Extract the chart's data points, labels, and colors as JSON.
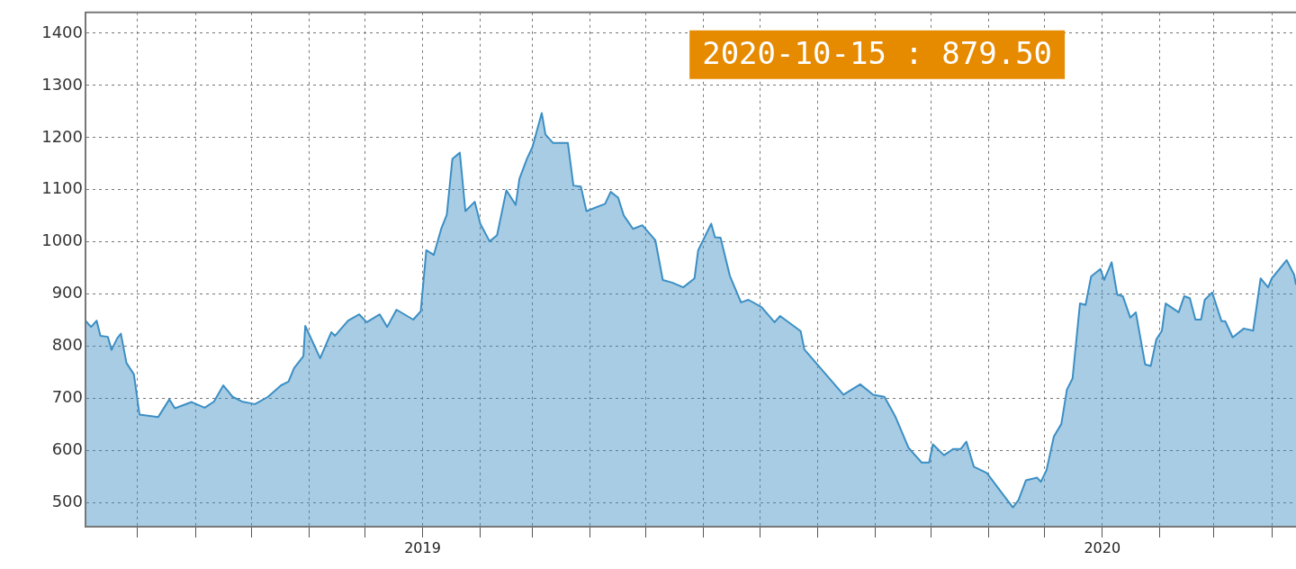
{
  "chart_data": {
    "type": "area",
    "color": "#3c8fc4",
    "x": [
      "2018-07-04",
      "2018-07-07",
      "2018-07-10",
      "2018-07-12",
      "2018-07-16",
      "2018-07-18",
      "2018-07-21",
      "2018-07-23",
      "2018-07-26",
      "2018-07-30",
      "2018-08-02",
      "2018-08-12",
      "2018-08-18",
      "2018-08-21",
      "2018-08-30",
      "2018-09-06",
      "2018-09-11",
      "2018-09-16",
      "2018-09-21",
      "2018-09-26",
      "2018-10-03",
      "2018-10-10",
      "2018-10-17",
      "2018-10-21",
      "2018-10-24",
      "2018-10-29",
      "2018-10-30",
      "2018-11-07",
      "2018-11-13",
      "2018-11-15",
      "2018-11-22",
      "2018-11-28",
      "2018-12-02",
      "2018-12-09",
      "2018-12-13",
      "2018-12-18",
      "2018-12-27",
      "2018-12-31",
      "2019-01-03",
      "2019-01-07",
      "2019-01-11",
      "2019-01-14",
      "2019-01-17",
      "2019-01-21",
      "2019-01-24",
      "2019-01-29",
      "2019-02-01",
      "2019-02-06",
      "2019-02-10",
      "2019-02-15",
      "2019-02-20",
      "2019-02-22",
      "2019-02-26",
      "2019-03-01",
      "2019-03-06",
      "2019-03-08",
      "2019-03-12",
      "2019-03-20",
      "2019-03-23",
      "2019-03-27",
      "2019-03-30",
      "2019-04-09",
      "2019-04-12",
      "2019-04-16",
      "2019-04-19",
      "2019-04-24",
      "2019-04-29",
      "2019-05-06",
      "2019-05-10",
      "2019-05-15",
      "2019-05-21",
      "2019-05-27",
      "2019-05-29",
      "2019-06-05",
      "2019-06-07",
      "2019-06-10",
      "2019-06-15",
      "2019-06-21",
      "2019-06-25",
      "2019-07-02",
      "2019-07-09",
      "2019-07-12",
      "2019-07-23",
      "2019-07-25",
      "2019-08-15",
      "2019-08-24",
      "2019-08-31",
      "2019-09-06",
      "2019-09-12",
      "2019-09-19",
      "2019-09-26",
      "2019-09-30",
      "2019-10-02",
      "2019-10-08",
      "2019-10-13",
      "2019-10-17",
      "2019-10-20",
      "2019-10-24",
      "2019-10-31",
      "2019-11-08",
      "2019-11-14",
      "2019-11-17",
      "2019-11-21",
      "2019-11-27",
      "2019-11-29",
      "2019-12-02",
      "2019-12-06",
      "2019-12-10",
      "2019-12-13",
      "2019-12-16",
      "2019-12-20",
      "2019-12-23",
      "2019-12-26",
      "2019-12-31",
      "2020-01-02",
      "2020-01-06",
      "2020-01-09",
      "2020-01-12",
      "2020-01-16",
      "2020-01-19",
      "2020-01-24",
      "2020-01-27",
      "2020-01-30",
      "2020-02-02",
      "2020-02-04",
      "2020-02-11",
      "2020-02-14",
      "2020-02-17",
      "2020-02-20",
      "2020-02-23",
      "2020-02-25",
      "2020-02-29",
      "2020-03-05",
      "2020-03-07",
      "2020-03-11",
      "2020-03-17",
      "2020-03-22",
      "2020-03-26",
      "2020-03-30",
      "2020-04-01",
      "2020-04-09",
      "2020-04-13",
      "2020-04-14"
    ],
    "values": [
      849,
      837,
      849,
      820,
      818,
      793,
      815,
      824,
      768,
      746,
      669,
      664,
      698,
      681,
      693,
      682,
      694,
      725,
      703,
      694,
      689,
      703,
      725,
      732,
      758,
      781,
      839,
      777,
      827,
      820,
      849,
      861,
      846,
      861,
      837,
      870,
      851,
      867,
      984,
      975,
      1025,
      1052,
      1159,
      1171,
      1059,
      1077,
      1035,
      1001,
      1013,
      1099,
      1071,
      1121,
      1159,
      1182,
      1247,
      1206,
      1190,
      1190,
      1108,
      1106,
      1059,
      1073,
      1096,
      1085,
      1051,
      1025,
      1032,
      1003,
      927,
      922,
      913,
      930,
      984,
      1035,
      1009,
      1008,
      935,
      884,
      889,
      875,
      846,
      858,
      829,
      794,
      707,
      727,
      707,
      703,
      664,
      605,
      577,
      577,
      612,
      591,
      603,
      603,
      617,
      569,
      557,
      519,
      491,
      505,
      543,
      548,
      540,
      562,
      627,
      651,
      717,
      738,
      882,
      879,
      934,
      948,
      927,
      961,
      899,
      896,
      855,
      865,
      765,
      762,
      813,
      830,
      882,
      865,
      896,
      892,
      851,
      851,
      889,
      903,
      848,
      848,
      817,
      834,
      830,
      930,
      913,
      930,
      965,
      937,
      918
    ],
    "xlim": [
      "2018-07-04",
      "2020-04-14"
    ],
    "xticks": [
      {
        "value": "2018-08-01",
        "label": null
      },
      {
        "value": "2018-09-01",
        "label": null
      },
      {
        "value": "2018-10-01",
        "label": null
      },
      {
        "value": "2018-11-01",
        "label": null
      },
      {
        "value": "2018-12-01",
        "label": null
      },
      {
        "value": "2019-01-01",
        "label": "2019"
      },
      {
        "value": "2019-02-01",
        "label": null
      },
      {
        "value": "2019-03-01",
        "label": null
      },
      {
        "value": "2019-04-01",
        "label": null
      },
      {
        "value": "2019-05-01",
        "label": null
      },
      {
        "value": "2019-06-01",
        "label": null
      },
      {
        "value": "2019-07-01",
        "label": null
      },
      {
        "value": "2019-08-01",
        "label": null
      },
      {
        "value": "2019-09-01",
        "label": null
      },
      {
        "value": "2019-10-01",
        "label": null
      },
      {
        "value": "2019-11-01",
        "label": null
      },
      {
        "value": "2019-12-01",
        "label": null
      },
      {
        "value": "2020-01-01",
        "label": "2020"
      },
      {
        "value": "2020-02-01",
        "label": null
      },
      {
        "value": "2020-03-01",
        "label": null
      },
      {
        "value": "2020-04-01",
        "label": null
      }
    ],
    "ylim": [
      454,
      1440
    ],
    "yticks": [
      500,
      600,
      700,
      800,
      900,
      1000,
      1100,
      1200,
      1300,
      1400
    ],
    "grid": true,
    "legend": false,
    "marker": "none",
    "line_style": "solid",
    "annotations": [
      "2020-10-15 : 879.50"
    ]
  }
}
